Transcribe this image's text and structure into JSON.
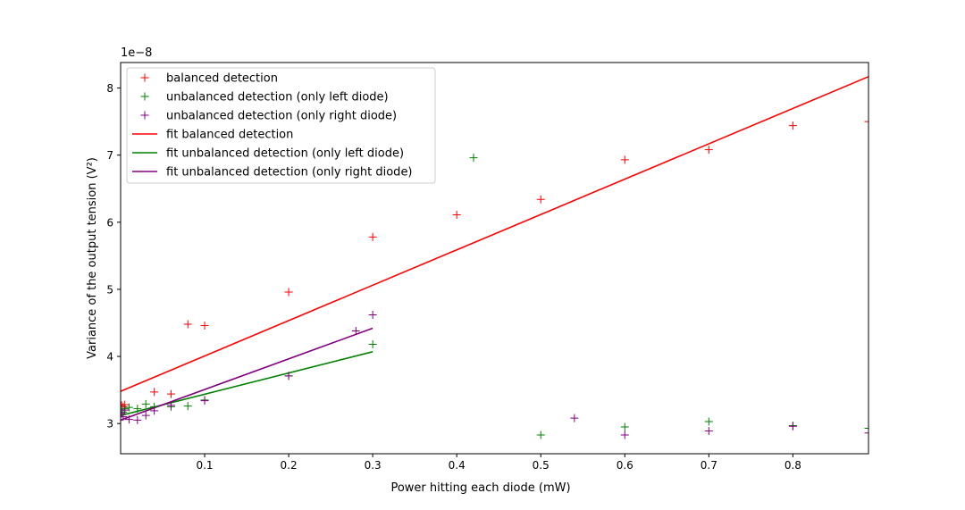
{
  "chart_data": {
    "type": "scatter",
    "title": "",
    "xlabel": "Power hitting each diode (mW)",
    "ylabel": "Variance of the output tension (V²)",
    "y_offset_label": "1e−8",
    "xlim": [
      0.0,
      0.89
    ],
    "ylim": [
      2.55,
      8.38
    ],
    "x_ticks": [
      0.1,
      0.2,
      0.3,
      0.4,
      0.5,
      0.6,
      0.7,
      0.8
    ],
    "x_tick_labels": [
      "0.1",
      "0.2",
      "0.3",
      "0.4",
      "0.5",
      "0.6",
      "0.7",
      "0.8"
    ],
    "y_ticks": [
      3,
      4,
      5,
      6,
      7,
      8
    ],
    "y_tick_labels": [
      "3",
      "4",
      "5",
      "6",
      "7",
      "8"
    ],
    "grid": false,
    "legend_position": "top-left",
    "series": [
      {
        "name": "balanced detection",
        "kind": "scatter",
        "marker": "+",
        "color": "#ff0000",
        "points": [
          [
            0.001,
            3.27
          ],
          [
            0.003,
            3.25
          ],
          [
            0.005,
            3.28
          ],
          [
            0.04,
            3.47
          ],
          [
            0.06,
            3.44
          ],
          [
            0.08,
            4.48
          ],
          [
            0.1,
            4.46
          ],
          [
            0.2,
            4.96
          ],
          [
            0.3,
            5.78
          ],
          [
            0.4,
            6.11
          ],
          [
            0.5,
            6.34
          ],
          [
            0.6,
            6.93
          ],
          [
            0.7,
            7.08
          ],
          [
            0.8,
            7.44
          ],
          [
            0.89,
            7.5
          ]
        ]
      },
      {
        "name": "unbalanced detection (only left diode)",
        "kind": "scatter",
        "marker": "+",
        "color": "#008000",
        "points": [
          [
            0.001,
            3.2
          ],
          [
            0.003,
            3.17
          ],
          [
            0.005,
            3.22
          ],
          [
            0.01,
            3.24
          ],
          [
            0.02,
            3.22
          ],
          [
            0.03,
            3.29
          ],
          [
            0.04,
            3.25
          ],
          [
            0.06,
            3.25
          ],
          [
            0.08,
            3.26
          ],
          [
            0.1,
            3.35
          ],
          [
            0.2,
            3.71
          ],
          [
            0.3,
            4.18
          ],
          [
            0.42,
            6.96
          ],
          [
            0.5,
            2.83
          ],
          [
            0.6,
            2.95
          ],
          [
            0.7,
            3.03
          ],
          [
            0.8,
            2.97
          ],
          [
            0.89,
            2.93
          ]
        ]
      },
      {
        "name": "unbalanced detection (only right diode)",
        "kind": "scatter",
        "marker": "+",
        "color": "#800080",
        "points": [
          [
            0.001,
            3.15
          ],
          [
            0.003,
            3.1
          ],
          [
            0.005,
            3.2
          ],
          [
            0.01,
            3.06
          ],
          [
            0.02,
            3.05
          ],
          [
            0.03,
            3.12
          ],
          [
            0.04,
            3.19
          ],
          [
            0.06,
            3.27
          ],
          [
            0.1,
            3.34
          ],
          [
            0.2,
            3.71
          ],
          [
            0.28,
            4.38
          ],
          [
            0.3,
            4.62
          ],
          [
            0.54,
            3.08
          ],
          [
            0.6,
            2.83
          ],
          [
            0.7,
            2.89
          ],
          [
            0.8,
            2.96
          ],
          [
            0.89,
            2.86
          ]
        ]
      },
      {
        "name": "fit balanced detection",
        "kind": "line",
        "color": "#ff0000",
        "points": [
          [
            0.0,
            3.48
          ],
          [
            0.89,
            8.17
          ]
        ]
      },
      {
        "name": "fit unbalanced detection (only left diode)",
        "kind": "line",
        "color": "#008000",
        "points": [
          [
            0.0,
            3.12
          ],
          [
            0.3,
            4.07
          ]
        ]
      },
      {
        "name": "fit unbalanced detection (only right diode)",
        "kind": "line",
        "color": "#800080",
        "points": [
          [
            0.0,
            3.05
          ],
          [
            0.3,
            4.42
          ]
        ]
      }
    ]
  }
}
